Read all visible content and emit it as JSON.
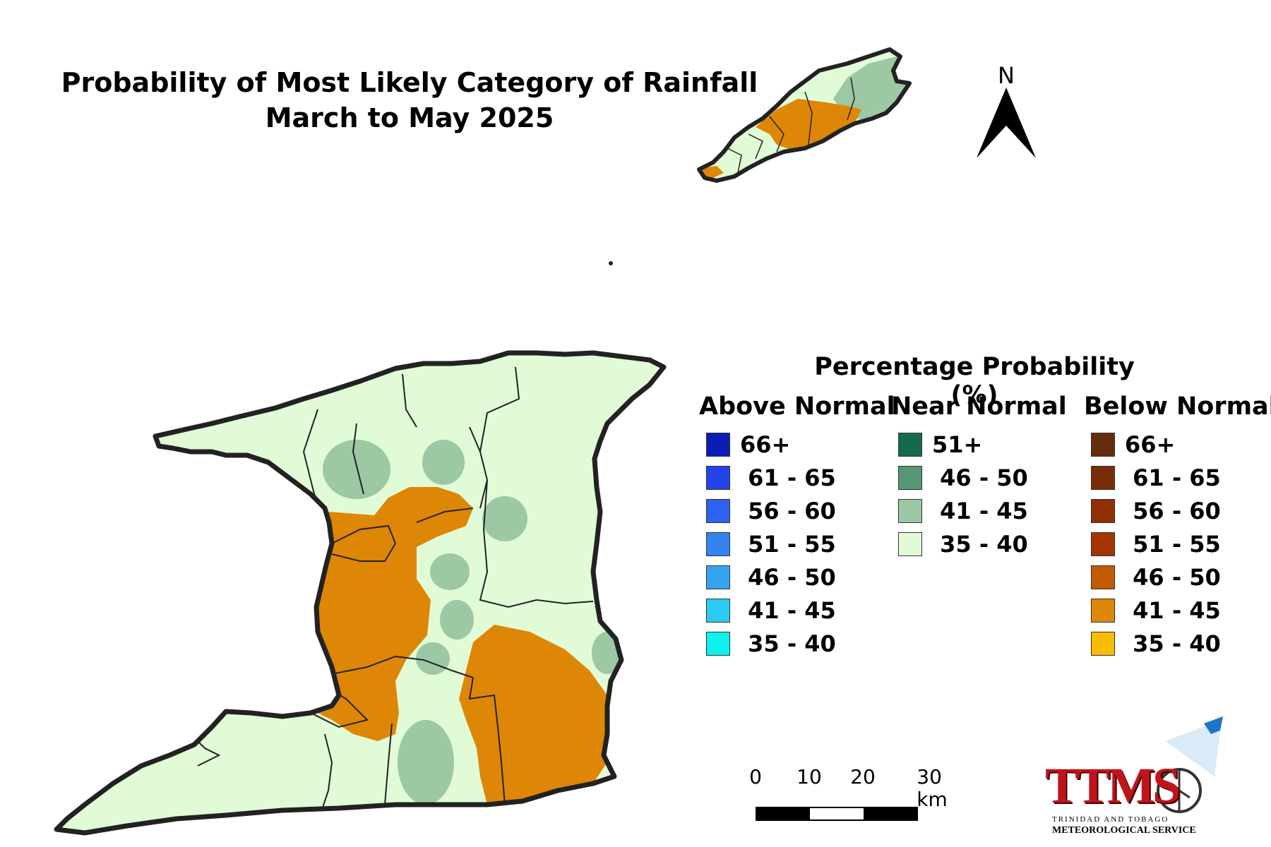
{
  "title": {
    "line1": "Probability of Most Likely Category of Rainfall",
    "line2": "March to May 2025"
  },
  "north_arrow": {
    "label": "N",
    "icon": "north-arrow-icon"
  },
  "legend": {
    "title": "Percentage Probability (%)",
    "columns": [
      {
        "heading": "Above Normal",
        "items": [
          {
            "label": "66+",
            "color": "#0a1eb4"
          },
          {
            "label": " 61 - 65",
            "color": "#2244e8"
          },
          {
            "label": " 56 - 60",
            "color": "#2e62f0"
          },
          {
            "label": " 51 - 55",
            "color": "#3483ee"
          },
          {
            "label": " 46 - 50",
            "color": "#34a4f0"
          },
          {
            "label": " 41 - 45",
            "color": "#2ccbef"
          },
          {
            "label": " 35 - 40",
            "color": "#0cf0ef"
          }
        ]
      },
      {
        "heading": "Near Normal",
        "items": [
          {
            "label": "51+",
            "color": "#146b4c"
          },
          {
            "label": " 46 - 50",
            "color": "#559774"
          },
          {
            "label": " 41 - 45",
            "color": "#9cc8a4"
          },
          {
            "label": " 35 - 40",
            "color": "#e0fbd6"
          }
        ]
      },
      {
        "heading": "Below Normal",
        "items": [
          {
            "label": "66+",
            "color": "#662c0e"
          },
          {
            "label": " 61 - 65",
            "color": "#7a2e08"
          },
          {
            "label": " 56 - 60",
            "color": "#8e3004"
          },
          {
            "label": " 51 - 55",
            "color": "#a43404"
          },
          {
            "label": " 46 - 50",
            "color": "#c45a04"
          },
          {
            "label": " 41 - 45",
            "color": "#de8706"
          },
          {
            "label": " 35 - 40",
            "color": "#f8bc06"
          }
        ]
      }
    ]
  },
  "scale_bar": {
    "labels": [
      "0",
      "10",
      "20",
      "30 km"
    ],
    "segment_colors": [
      "#000000",
      "#ffffff",
      "#000000"
    ]
  },
  "map_regions": {
    "base_color": "#e0fbd6",
    "near_normal_41_45_color": "#9cc8a4",
    "below_normal_41_45_color": "#de8706",
    "outline_color": "#222222"
  },
  "logo": {
    "text": "TTMS",
    "subtitle1": "TRINIDAD AND TOBAGO",
    "subtitle2": "METEOROLOGICAL SERVICE"
  }
}
